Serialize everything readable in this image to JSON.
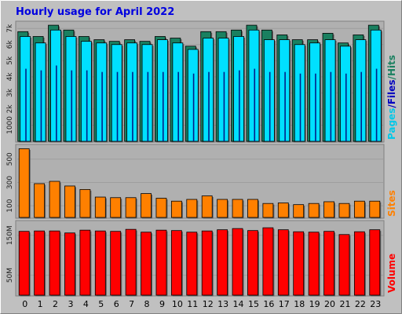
{
  "title": "Hourly usage for April 2022",
  "colors": {
    "background": "#C0C0C0",
    "panel": "#B0B0B0",
    "title": "#0000E0",
    "hits": "#1A8060",
    "files": "#00E0FF",
    "pages": "#00208A",
    "sites": "#FF8000",
    "volume": "#FF0000",
    "grid": "#9E9E9E"
  },
  "legend": {
    "top": {
      "pages": "Pages",
      "slash1": "/",
      "files": "Files",
      "slash2": "/",
      "hits": "Hits"
    },
    "middle": {
      "sites": "Sites"
    },
    "bottom": {
      "volume": "Volume"
    }
  },
  "chart_data": [
    {
      "type": "bar",
      "title": "Hourly usage for April 2022",
      "categories": [
        "0",
        "1",
        "2",
        "3",
        "4",
        "5",
        "6",
        "7",
        "8",
        "9",
        "10",
        "11",
        "12",
        "13",
        "14",
        "15",
        "16",
        "17",
        "18",
        "19",
        "20",
        "21",
        "22",
        "23"
      ],
      "series": [
        {
          "name": "Hits",
          "values": [
            6800,
            6500,
            7200,
            6900,
            6500,
            6300,
            6200,
            6300,
            6200,
            6500,
            6400,
            5900,
            6800,
            6800,
            6900,
            7200,
            6900,
            6600,
            6300,
            6300,
            6700,
            6100,
            6600,
            7200
          ]
        },
        {
          "name": "Files",
          "values": [
            6500,
            6100,
            6900,
            6500,
            6200,
            6100,
            6000,
            6100,
            6000,
            6300,
            6100,
            5700,
            6400,
            6400,
            6500,
            6900,
            6300,
            6300,
            6000,
            6100,
            6300,
            5900,
            6300,
            6900
          ]
        },
        {
          "name": "Pages",
          "values": [
            4500,
            4400,
            4700,
            4400,
            4400,
            4300,
            4300,
            4300,
            4300,
            4300,
            4300,
            4200,
            4300,
            4300,
            4400,
            4500,
            4300,
            4300,
            4200,
            4200,
            4300,
            4200,
            4300,
            4500
          ]
        }
      ],
      "yticks": [
        "1000",
        "2k",
        "3k",
        "4k",
        "5k",
        "6k",
        "7k"
      ],
      "ytick_values": [
        1000,
        2000,
        3000,
        4000,
        5000,
        6000,
        7000
      ],
      "ylim": [
        0,
        7400
      ],
      "grid": true
    },
    {
      "type": "bar",
      "categories": [
        "0",
        "1",
        "2",
        "3",
        "4",
        "5",
        "6",
        "7",
        "8",
        "9",
        "10",
        "11",
        "12",
        "13",
        "14",
        "15",
        "16",
        "17",
        "18",
        "19",
        "20",
        "21",
        "22",
        "23"
      ],
      "series": [
        {
          "name": "Sites",
          "values": [
            590,
            290,
            310,
            270,
            240,
            175,
            170,
            170,
            205,
            165,
            140,
            155,
            185,
            155,
            155,
            155,
            120,
            125,
            110,
            120,
            135,
            120,
            140,
            140
          ]
        }
      ],
      "yticks": [
        "100",
        "300",
        "500"
      ],
      "ytick_values": [
        100,
        300,
        500
      ],
      "ylim": [
        0,
        620
      ],
      "grid": true
    },
    {
      "type": "bar",
      "categories": [
        "0",
        "1",
        "2",
        "3",
        "4",
        "5",
        "6",
        "7",
        "8",
        "9",
        "10",
        "11",
        "12",
        "13",
        "14",
        "15",
        "16",
        "17",
        "18",
        "19",
        "20",
        "21",
        "22",
        "23"
      ],
      "series": [
        {
          "name": "Volume",
          "values": [
            160,
            161,
            161,
            156,
            163,
            161,
            160,
            165,
            158,
            163,
            162,
            158,
            161,
            164,
            167,
            162,
            169,
            164,
            159,
            158,
            160,
            152,
            159,
            164
          ]
        }
      ],
      "yticks": [
        "50M",
        "150M"
      ],
      "ytick_values": [
        50,
        150
      ],
      "ylim": [
        0,
        185
      ],
      "grid": true
    }
  ]
}
